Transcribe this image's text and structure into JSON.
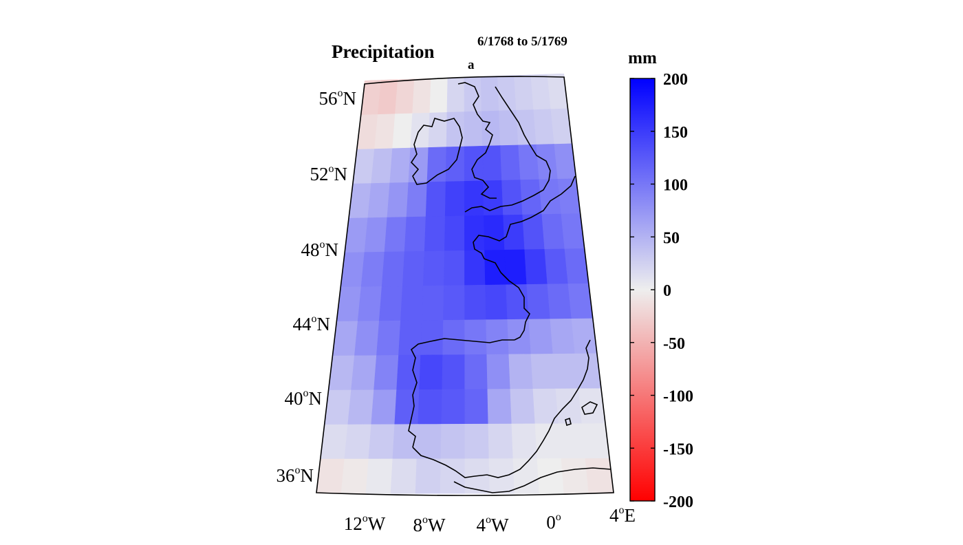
{
  "title": {
    "main": "Precipitation",
    "subscript": "a",
    "superscript": "6/1768 to 5/1769"
  },
  "map": {
    "projection": "conic",
    "lat_range": [
      35,
      57
    ],
    "lon_range": [
      -14,
      4
    ],
    "lat_labels": [
      {
        "num": "56",
        "deg": "o",
        "hemi": "N"
      },
      {
        "num": "52",
        "deg": "o",
        "hemi": "N"
      },
      {
        "num": "48",
        "deg": "o",
        "hemi": "N"
      },
      {
        "num": "44",
        "deg": "o",
        "hemi": "N"
      },
      {
        "num": "40",
        "deg": "o",
        "hemi": "N"
      },
      {
        "num": "36",
        "deg": "o",
        "hemi": "N"
      }
    ],
    "lon_labels": [
      {
        "num": "12",
        "deg": "o",
        "hemi": "W"
      },
      {
        "num": "8",
        "deg": "o",
        "hemi": "W"
      },
      {
        "num": "4",
        "deg": "o",
        "hemi": "W"
      },
      {
        "num": "0",
        "deg": "o",
        "hemi": ""
      },
      {
        "num": "4",
        "deg": "o",
        "hemi": "E"
      }
    ],
    "grid": {
      "cols": 12,
      "rows": 12,
      "values": [
        [
          -25,
          -30,
          -20,
          -10,
          0,
          20,
          30,
          35,
          30,
          25,
          20,
          15
        ],
        [
          -15,
          -10,
          0,
          10,
          20,
          35,
          40,
          45,
          40,
          35,
          30,
          25
        ],
        [
          30,
          40,
          55,
          70,
          110,
          120,
          130,
          130,
          115,
          100,
          90,
          80
        ],
        [
          50,
          60,
          75,
          95,
          130,
          145,
          155,
          150,
          130,
          115,
          100,
          95
        ],
        [
          70,
          80,
          100,
          115,
          130,
          140,
          160,
          165,
          150,
          130,
          110,
          100
        ],
        [
          80,
          95,
          110,
          120,
          125,
          130,
          155,
          175,
          175,
          150,
          125,
          110
        ],
        [
          75,
          90,
          110,
          120,
          120,
          125,
          135,
          140,
          130,
          120,
          110,
          100
        ],
        [
          60,
          80,
          100,
          120,
          120,
          110,
          100,
          90,
          80,
          70,
          60,
          55
        ],
        [
          45,
          60,
          90,
          125,
          140,
          130,
          110,
          80,
          50,
          40,
          40,
          40
        ],
        [
          30,
          45,
          70,
          120,
          130,
          125,
          115,
          60,
          35,
          20,
          15,
          10
        ],
        [
          15,
          20,
          30,
          40,
          40,
          35,
          30,
          20,
          10,
          5,
          5,
          5
        ],
        [
          -10,
          -5,
          5,
          15,
          25,
          20,
          15,
          10,
          5,
          0,
          -5,
          -10
        ]
      ]
    }
  },
  "colorbar": {
    "unit": "mm",
    "min": -200,
    "max": 200,
    "ticks": [
      "200",
      "150",
      "100",
      "50",
      "0",
      "-50",
      "-100",
      "-150",
      "-200"
    ],
    "colors": {
      "high": "#0000ff",
      "mid": "#eeeeee",
      "low": "#ff0000"
    }
  }
}
